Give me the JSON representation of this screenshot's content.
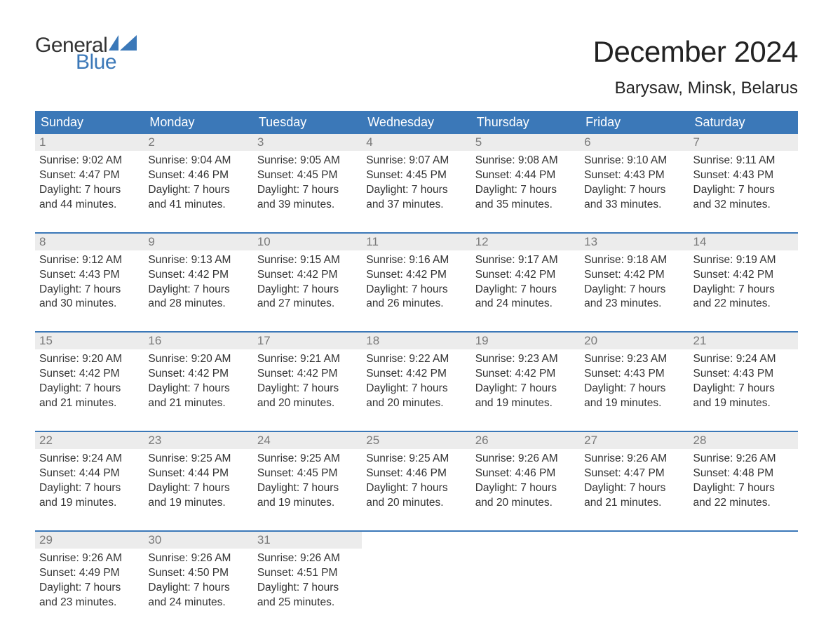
{
  "brand": {
    "top": "General",
    "bottom": "Blue",
    "flag_color": "#3b78b8"
  },
  "title": "December 2024",
  "location": "Barysaw, Minsk, Belarus",
  "colors": {
    "header_bg": "#3b78b8",
    "header_text": "#ffffff",
    "daynum_bg": "#ececec",
    "daynum_text": "#7a7a7a",
    "body_text": "#333333",
    "week_border": "#3b78b8",
    "page_bg": "#ffffff"
  },
  "typography": {
    "title_fontsize": 42,
    "location_fontsize": 24,
    "header_fontsize": 18,
    "body_fontsize": 15.5,
    "logo_fontsize": 30
  },
  "day_names": [
    "Sunday",
    "Monday",
    "Tuesday",
    "Wednesday",
    "Thursday",
    "Friday",
    "Saturday"
  ],
  "labels": {
    "sunrise": "Sunrise:",
    "sunset": "Sunset:",
    "daylight": "Daylight:"
  },
  "weeks": [
    [
      {
        "n": "1",
        "sr": "9:02 AM",
        "ss": "4:47 PM",
        "dl": "7 hours and 44 minutes."
      },
      {
        "n": "2",
        "sr": "9:04 AM",
        "ss": "4:46 PM",
        "dl": "7 hours and 41 minutes."
      },
      {
        "n": "3",
        "sr": "9:05 AM",
        "ss": "4:45 PM",
        "dl": "7 hours and 39 minutes."
      },
      {
        "n": "4",
        "sr": "9:07 AM",
        "ss": "4:45 PM",
        "dl": "7 hours and 37 minutes."
      },
      {
        "n": "5",
        "sr": "9:08 AM",
        "ss": "4:44 PM",
        "dl": "7 hours and 35 minutes."
      },
      {
        "n": "6",
        "sr": "9:10 AM",
        "ss": "4:43 PM",
        "dl": "7 hours and 33 minutes."
      },
      {
        "n": "7",
        "sr": "9:11 AM",
        "ss": "4:43 PM",
        "dl": "7 hours and 32 minutes."
      }
    ],
    [
      {
        "n": "8",
        "sr": "9:12 AM",
        "ss": "4:43 PM",
        "dl": "7 hours and 30 minutes."
      },
      {
        "n": "9",
        "sr": "9:13 AM",
        "ss": "4:42 PM",
        "dl": "7 hours and 28 minutes."
      },
      {
        "n": "10",
        "sr": "9:15 AM",
        "ss": "4:42 PM",
        "dl": "7 hours and 27 minutes."
      },
      {
        "n": "11",
        "sr": "9:16 AM",
        "ss": "4:42 PM",
        "dl": "7 hours and 26 minutes."
      },
      {
        "n": "12",
        "sr": "9:17 AM",
        "ss": "4:42 PM",
        "dl": "7 hours and 24 minutes."
      },
      {
        "n": "13",
        "sr": "9:18 AM",
        "ss": "4:42 PM",
        "dl": "7 hours and 23 minutes."
      },
      {
        "n": "14",
        "sr": "9:19 AM",
        "ss": "4:42 PM",
        "dl": "7 hours and 22 minutes."
      }
    ],
    [
      {
        "n": "15",
        "sr": "9:20 AM",
        "ss": "4:42 PM",
        "dl": "7 hours and 21 minutes."
      },
      {
        "n": "16",
        "sr": "9:20 AM",
        "ss": "4:42 PM",
        "dl": "7 hours and 21 minutes."
      },
      {
        "n": "17",
        "sr": "9:21 AM",
        "ss": "4:42 PM",
        "dl": "7 hours and 20 minutes."
      },
      {
        "n": "18",
        "sr": "9:22 AM",
        "ss": "4:42 PM",
        "dl": "7 hours and 20 minutes."
      },
      {
        "n": "19",
        "sr": "9:23 AM",
        "ss": "4:42 PM",
        "dl": "7 hours and 19 minutes."
      },
      {
        "n": "20",
        "sr": "9:23 AM",
        "ss": "4:43 PM",
        "dl": "7 hours and 19 minutes."
      },
      {
        "n": "21",
        "sr": "9:24 AM",
        "ss": "4:43 PM",
        "dl": "7 hours and 19 minutes."
      }
    ],
    [
      {
        "n": "22",
        "sr": "9:24 AM",
        "ss": "4:44 PM",
        "dl": "7 hours and 19 minutes."
      },
      {
        "n": "23",
        "sr": "9:25 AM",
        "ss": "4:44 PM",
        "dl": "7 hours and 19 minutes."
      },
      {
        "n": "24",
        "sr": "9:25 AM",
        "ss": "4:45 PM",
        "dl": "7 hours and 19 minutes."
      },
      {
        "n": "25",
        "sr": "9:25 AM",
        "ss": "4:46 PM",
        "dl": "7 hours and 20 minutes."
      },
      {
        "n": "26",
        "sr": "9:26 AM",
        "ss": "4:46 PM",
        "dl": "7 hours and 20 minutes."
      },
      {
        "n": "27",
        "sr": "9:26 AM",
        "ss": "4:47 PM",
        "dl": "7 hours and 21 minutes."
      },
      {
        "n": "28",
        "sr": "9:26 AM",
        "ss": "4:48 PM",
        "dl": "7 hours and 22 minutes."
      }
    ],
    [
      {
        "n": "29",
        "sr": "9:26 AM",
        "ss": "4:49 PM",
        "dl": "7 hours and 23 minutes."
      },
      {
        "n": "30",
        "sr": "9:26 AM",
        "ss": "4:50 PM",
        "dl": "7 hours and 24 minutes."
      },
      {
        "n": "31",
        "sr": "9:26 AM",
        "ss": "4:51 PM",
        "dl": "7 hours and 25 minutes."
      },
      null,
      null,
      null,
      null
    ]
  ]
}
